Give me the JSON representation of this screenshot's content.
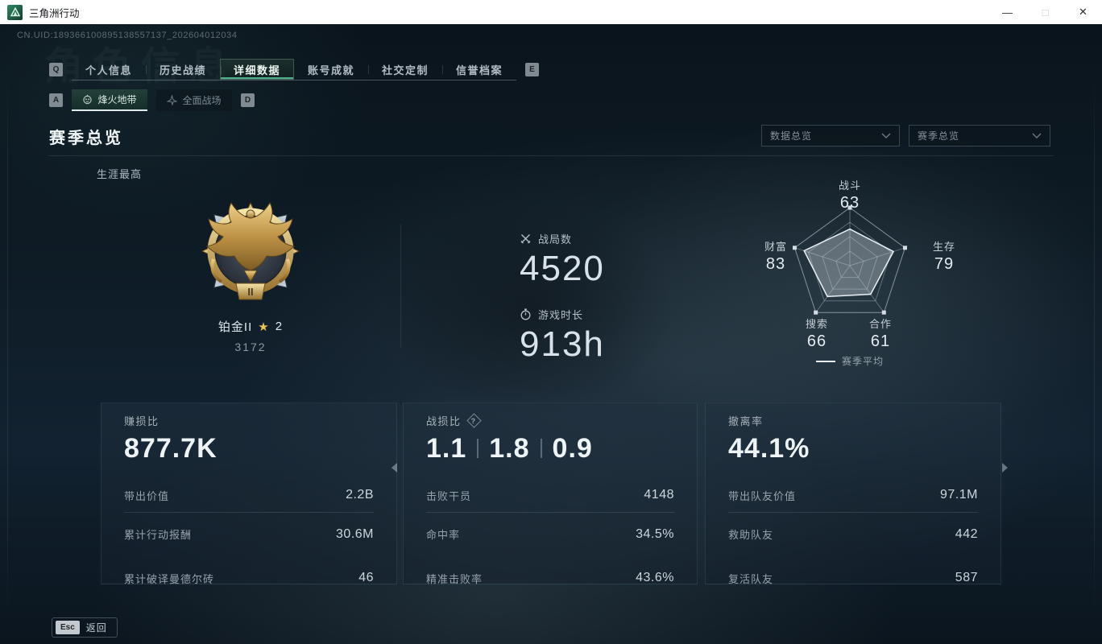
{
  "window": {
    "title": "三角洲行动",
    "minimize": "—",
    "maximize": "□",
    "close": "✕"
  },
  "header": {
    "uid": "CN.UID:189366100895138557137_202604012034",
    "watermark": "角色信息"
  },
  "tabs": {
    "key_left": "Q",
    "key_right": "E",
    "items": [
      {
        "label": "个人信息"
      },
      {
        "label": "历史战绩"
      },
      {
        "label": "详细数据"
      },
      {
        "label": "账号成就"
      },
      {
        "label": "社交定制"
      },
      {
        "label": "信誉档案"
      }
    ],
    "active_index": 2
  },
  "subtabs": {
    "key_left": "A",
    "key_right": "D",
    "items": [
      {
        "label": "烽火地带"
      },
      {
        "label": "全面战场"
      }
    ],
    "active_index": 0
  },
  "section": {
    "title": "赛季总览",
    "filters": [
      {
        "value": "数据总览"
      },
      {
        "value": "赛季总览"
      }
    ],
    "career_label": "生涯最高"
  },
  "career": {
    "rank_name": "铂金II",
    "star_glyph": "★",
    "star_count": "2",
    "score": "3172",
    "tier": "II"
  },
  "summary": {
    "battles_label": "战局数",
    "battles": "4520",
    "playtime_label": "游戏时长",
    "playtime": "913h"
  },
  "chart_data": {
    "type": "radar",
    "categories": [
      "战斗",
      "生存",
      "合作",
      "搜索",
      "财富"
    ],
    "values": [
      63,
      79,
      61,
      66,
      83
    ],
    "max": 100,
    "levels": 4,
    "legend": [
      "赛季平均"
    ],
    "legend_position": "bottom",
    "fill_color": "rgba(214,223,230,0.36)",
    "stroke_color": "#eaf0f4",
    "grid_color": "rgba(168,183,193,0.45)"
  },
  "cards": [
    {
      "title": "赚损比",
      "value": "877.7K",
      "rows": [
        {
          "label": "带出价值",
          "value": "2.2B"
        },
        {
          "label": "累计行动报酬",
          "value": "30.6M"
        },
        {
          "label": "累计破译曼德尔砖",
          "value": "46"
        }
      ]
    },
    {
      "title": "战损比",
      "help_icon": "?",
      "values": [
        "1.1",
        "1.8",
        "0.9"
      ],
      "rows": [
        {
          "label": "击败干员",
          "value": "4148"
        },
        {
          "label": "命中率",
          "value": "34.5%"
        },
        {
          "label": "精准击败率",
          "value": "43.6%"
        }
      ]
    },
    {
      "title": "撤离率",
      "value": "44.1%",
      "rows": [
        {
          "label": "带出队友价值",
          "value": "97.1M"
        },
        {
          "label": "救助队友",
          "value": "442"
        },
        {
          "label": "复活队友",
          "value": "587"
        }
      ]
    }
  ],
  "footer": {
    "esc_key": "Esc",
    "back_label": "返回"
  },
  "colors": {
    "accent_green": "#4fb189",
    "gold": "#d8b05e",
    "titlebar": "#ffffff"
  }
}
